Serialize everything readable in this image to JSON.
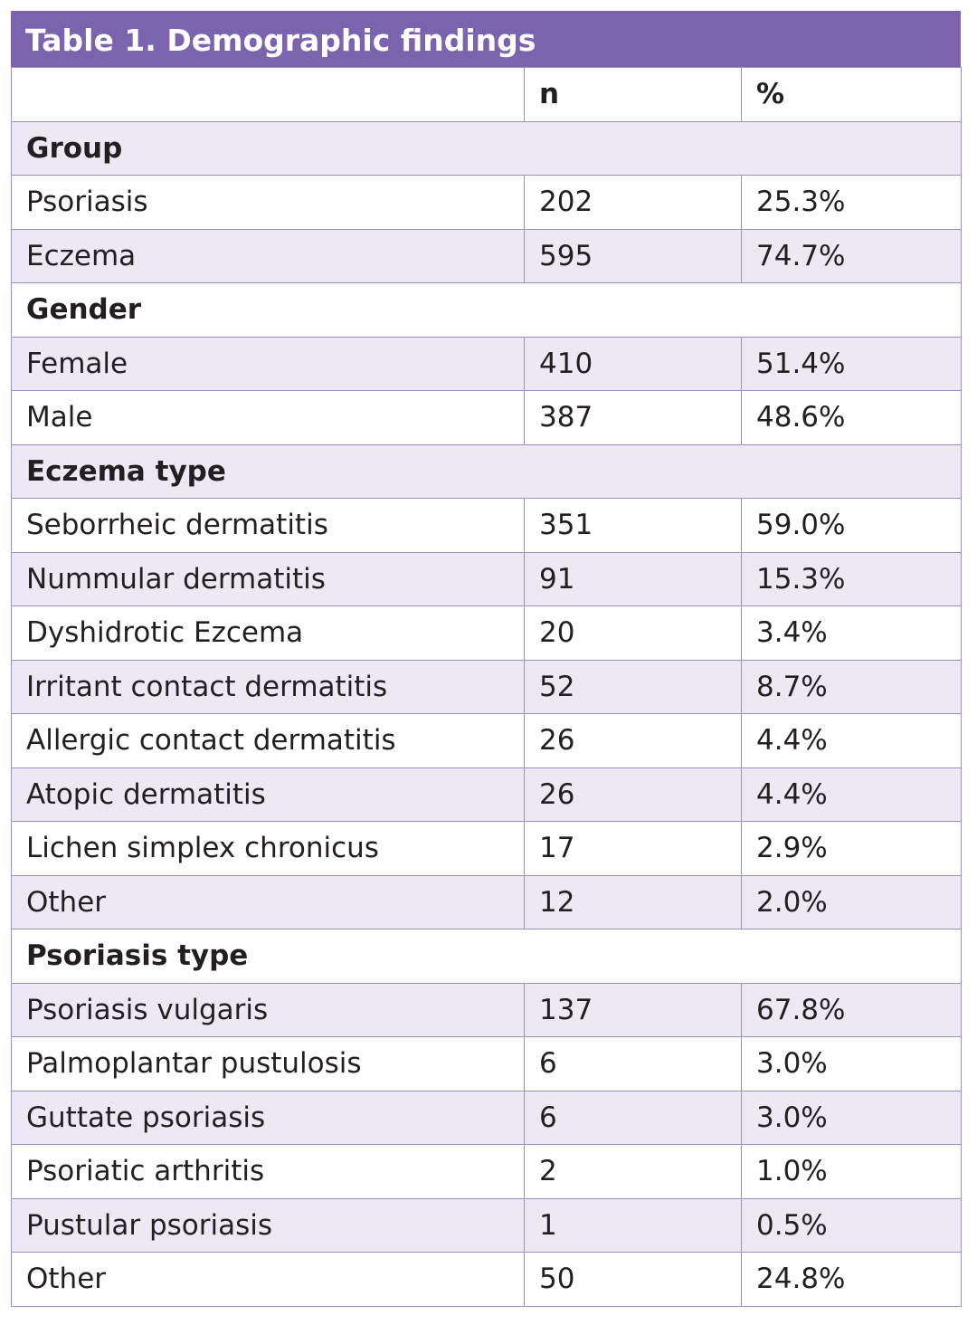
{
  "title": "Table 1. Demographic findings",
  "header": {
    "n": "n",
    "percent": "%"
  },
  "sections": [
    {
      "title": "Group",
      "rows": [
        [
          "Psoriasis",
          202,
          "25.3%"
        ],
        [
          "Eczema",
          595,
          "74.7%"
        ]
      ]
    },
    {
      "title": "Gender",
      "rows": [
        [
          "Female",
          410,
          "51.4%"
        ],
        [
          "Male",
          387,
          "48.6%"
        ]
      ]
    },
    {
      "title": "Eczema type",
      "rows": [
        [
          "Seborrheic dermatitis",
          351,
          "59.0%"
        ],
        [
          "Nummular dermatitis",
          91,
          "15.3%"
        ],
        [
          "Dyshidrotic Ezcema",
          20,
          "3.4%"
        ],
        [
          "Irritant contact dermatitis",
          52,
          "8.7%"
        ],
        [
          "Allergic contact dermatitis",
          26,
          "4.4%"
        ],
        [
          "Atopic dermatitis",
          26,
          "4.4%"
        ],
        [
          "Lichen simplex chronicus",
          17,
          "2.9%"
        ],
        [
          "Other",
          12,
          "2.0%"
        ]
      ]
    },
    {
      "title": "Psoriasis type",
      "rows": [
        [
          "Psoriasis vulgaris",
          137,
          "67.8%"
        ],
        [
          "Palmoplantar pustulosis",
          6,
          "3.0%"
        ],
        [
          "Guttate psoriasis",
          6,
          "3.0%"
        ],
        [
          "Psoriatic arthritis",
          2,
          "1.0%"
        ],
        [
          "Pustular psoriasis",
          1,
          "0.5%"
        ],
        [
          "Other",
          50,
          "24.8%"
        ]
      ]
    }
  ]
}
